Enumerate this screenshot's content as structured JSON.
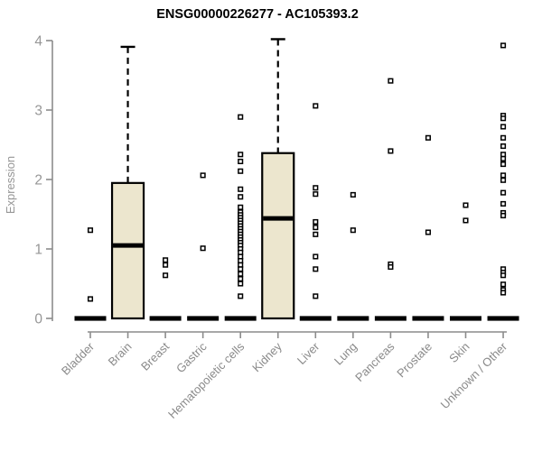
{
  "chart_data": {
    "type": "boxplot",
    "title": "ENSG00000226277 - AC105393.2",
    "ylabel": "Expression",
    "xlabel": "",
    "ylim": [
      0,
      4
    ],
    "yticks": [
      "0",
      "1",
      "2",
      "3",
      "4"
    ],
    "grid": false,
    "legend": null,
    "colors": {
      "box_fill": "#ECE6CE",
      "box_stroke": "#000000",
      "median": "#000000",
      "whisker": "#000000",
      "point_fill": "#ffffff",
      "point_stroke": "#000000",
      "axis": "#8c8c8c",
      "y_tick_label": "#969696",
      "x_tick_label": "#8a8a8a",
      "title": "#000000"
    },
    "categories": [
      {
        "label": "Bladder",
        "box": null,
        "points": [
          1.27,
          0.28
        ]
      },
      {
        "label": "Brain",
        "box": {
          "q1": 0,
          "median": 1.05,
          "q3": 1.95,
          "whisker_high": 3.91
        },
        "points": []
      },
      {
        "label": "Breast",
        "box": null,
        "points": [
          0.84,
          0.77,
          0.62
        ]
      },
      {
        "label": "Gastric",
        "box": null,
        "points": [
          2.06,
          1.01
        ]
      },
      {
        "label": "Hematopoietic cells",
        "box": null,
        "points": [
          2.9,
          2.36,
          2.26,
          2.12,
          1.86,
          1.75,
          1.6,
          1.53,
          1.49,
          1.45,
          1.41,
          1.37,
          1.33,
          1.29,
          1.25,
          1.21,
          1.17,
          1.13,
          1.09,
          1.05,
          1.0,
          0.95,
          0.89,
          0.83,
          0.77,
          0.71,
          0.64,
          0.57,
          0.5,
          0.32
        ]
      },
      {
        "label": "Kidney",
        "box": {
          "q1": 0,
          "median": 1.44,
          "q3": 2.38,
          "whisker_high": 4.02
        },
        "points": []
      },
      {
        "label": "Liver",
        "box": null,
        "points": [
          3.06,
          1.88,
          1.79,
          1.39,
          1.31,
          1.21,
          0.89,
          0.71,
          0.32
        ]
      },
      {
        "label": "Lung",
        "box": null,
        "points": [
          1.78,
          1.27
        ]
      },
      {
        "label": "Pancreas",
        "box": null,
        "points": [
          3.42,
          2.41,
          0.78,
          0.74
        ]
      },
      {
        "label": "Prostate",
        "box": null,
        "points": [
          2.6,
          1.24
        ]
      },
      {
        "label": "Skin",
        "box": null,
        "points": [
          1.63,
          1.41
        ]
      },
      {
        "label": "Unknown / Other",
        "box": null,
        "points": [
          3.93,
          2.92,
          2.88,
          2.76,
          2.6,
          2.48,
          2.36,
          2.3,
          2.22,
          2.06,
          1.99,
          1.81,
          1.65,
          1.52,
          1.48,
          0.71,
          0.66,
          0.62,
          0.49,
          0.41,
          0.37
        ]
      }
    ]
  }
}
